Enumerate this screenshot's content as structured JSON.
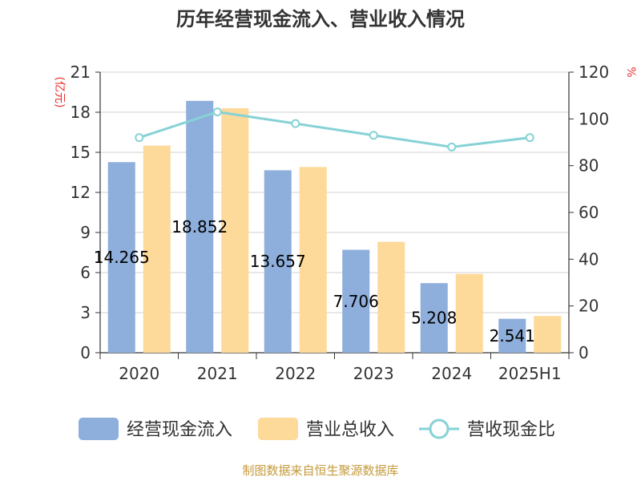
{
  "chart_data": {
    "type": "bar",
    "title": "历年经营现金流入、营业收入情况",
    "categories": [
      "2020",
      "2021",
      "2022",
      "2023",
      "2024",
      "2025H1"
    ],
    "y_left": {
      "unit": "(亿元)",
      "ticks": [
        "0",
        "3",
        "6",
        "9",
        "12",
        "15",
        "18",
        "21"
      ],
      "ylim": [
        0,
        21
      ]
    },
    "y_right": {
      "unit": "%",
      "ticks": [
        "0",
        "20",
        "40",
        "60",
        "80",
        "100",
        "120"
      ],
      "ylim": [
        0,
        120
      ]
    },
    "series": [
      {
        "name": "经营现金流入",
        "axis": "left",
        "color": "#8eaedb",
        "values": [
          14.265,
          18.852,
          13.657,
          7.706,
          5.208,
          2.541
        ],
        "labels": [
          "14.265",
          "18.852",
          "13.657",
          "7.706",
          "5.208",
          "2.541"
        ]
      },
      {
        "name": "营业总收入",
        "axis": "left",
        "color": "#fdd99a",
        "values": [
          15.5,
          18.3,
          13.9,
          8.3,
          5.9,
          2.75
        ]
      },
      {
        "name": "营收现金比",
        "axis": "right",
        "type": "line",
        "color": "#86d2d6",
        "values": [
          92,
          103,
          98,
          93,
          88,
          92
        ]
      }
    ],
    "grid": true,
    "legend": "bottom"
  },
  "source": "制图数据来自恒生聚源数据库"
}
